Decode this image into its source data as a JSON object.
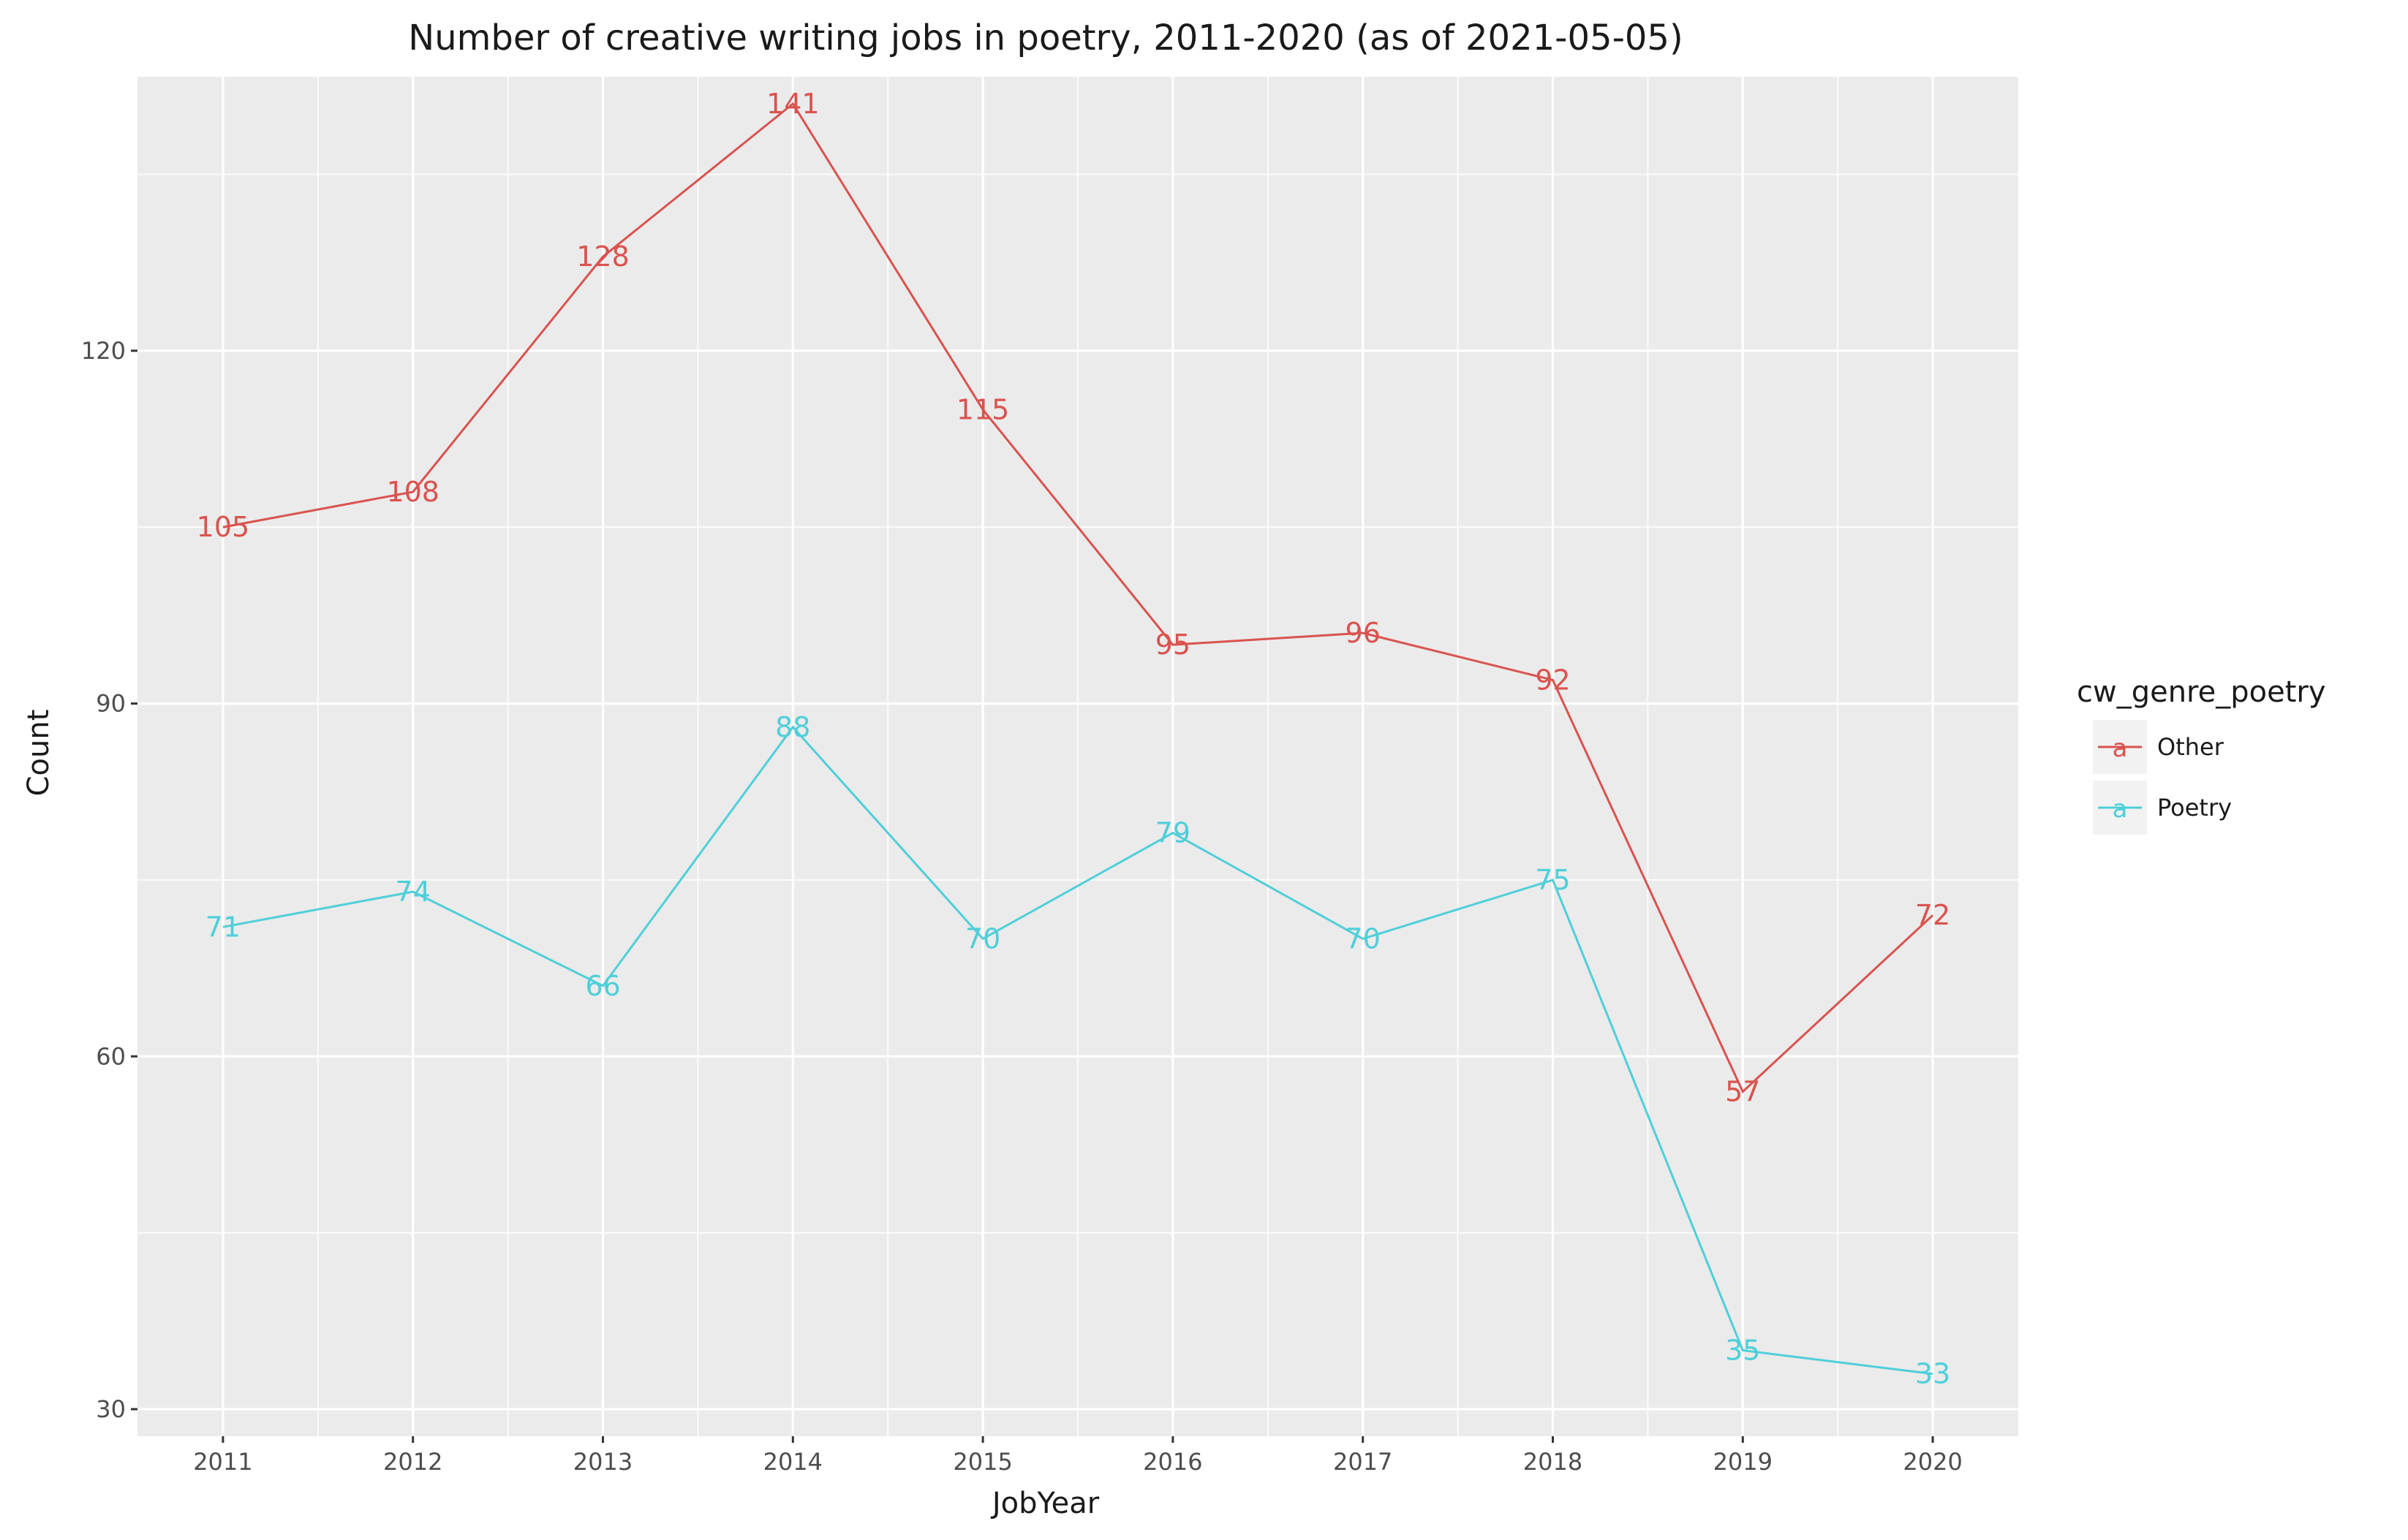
{
  "chart_data": {
    "type": "line",
    "title": "Number of creative writing jobs in poetry, 2011-2020 (as of 2021-05-05)",
    "xlabel": "JobYear",
    "ylabel": "Count",
    "x": [
      2011,
      2012,
      2013,
      2014,
      2015,
      2016,
      2017,
      2018,
      2019,
      2020
    ],
    "x_tick_labels": [
      "2011",
      "2012",
      "2013",
      "2014",
      "2015",
      "2016",
      "2017",
      "2018",
      "2019",
      "2020"
    ],
    "y_ticks": [
      30,
      60,
      90,
      120
    ],
    "y_tick_labels": [
      "30",
      "60",
      "90",
      "120"
    ],
    "ylim": [
      27.7,
      143.3
    ],
    "grid": true,
    "legend": {
      "title": "cw_genre_poetry",
      "position": "right",
      "key_glyph": "a"
    },
    "series": [
      {
        "name": "Other",
        "color": "#D9534F",
        "values": [
          105,
          108,
          128,
          141,
          115,
          95,
          96,
          92,
          57,
          72
        ]
      },
      {
        "name": "Poetry",
        "color": "#4FCFD9",
        "values": [
          71,
          74,
          66,
          88,
          70,
          79,
          70,
          75,
          35,
          33
        ]
      }
    ]
  }
}
